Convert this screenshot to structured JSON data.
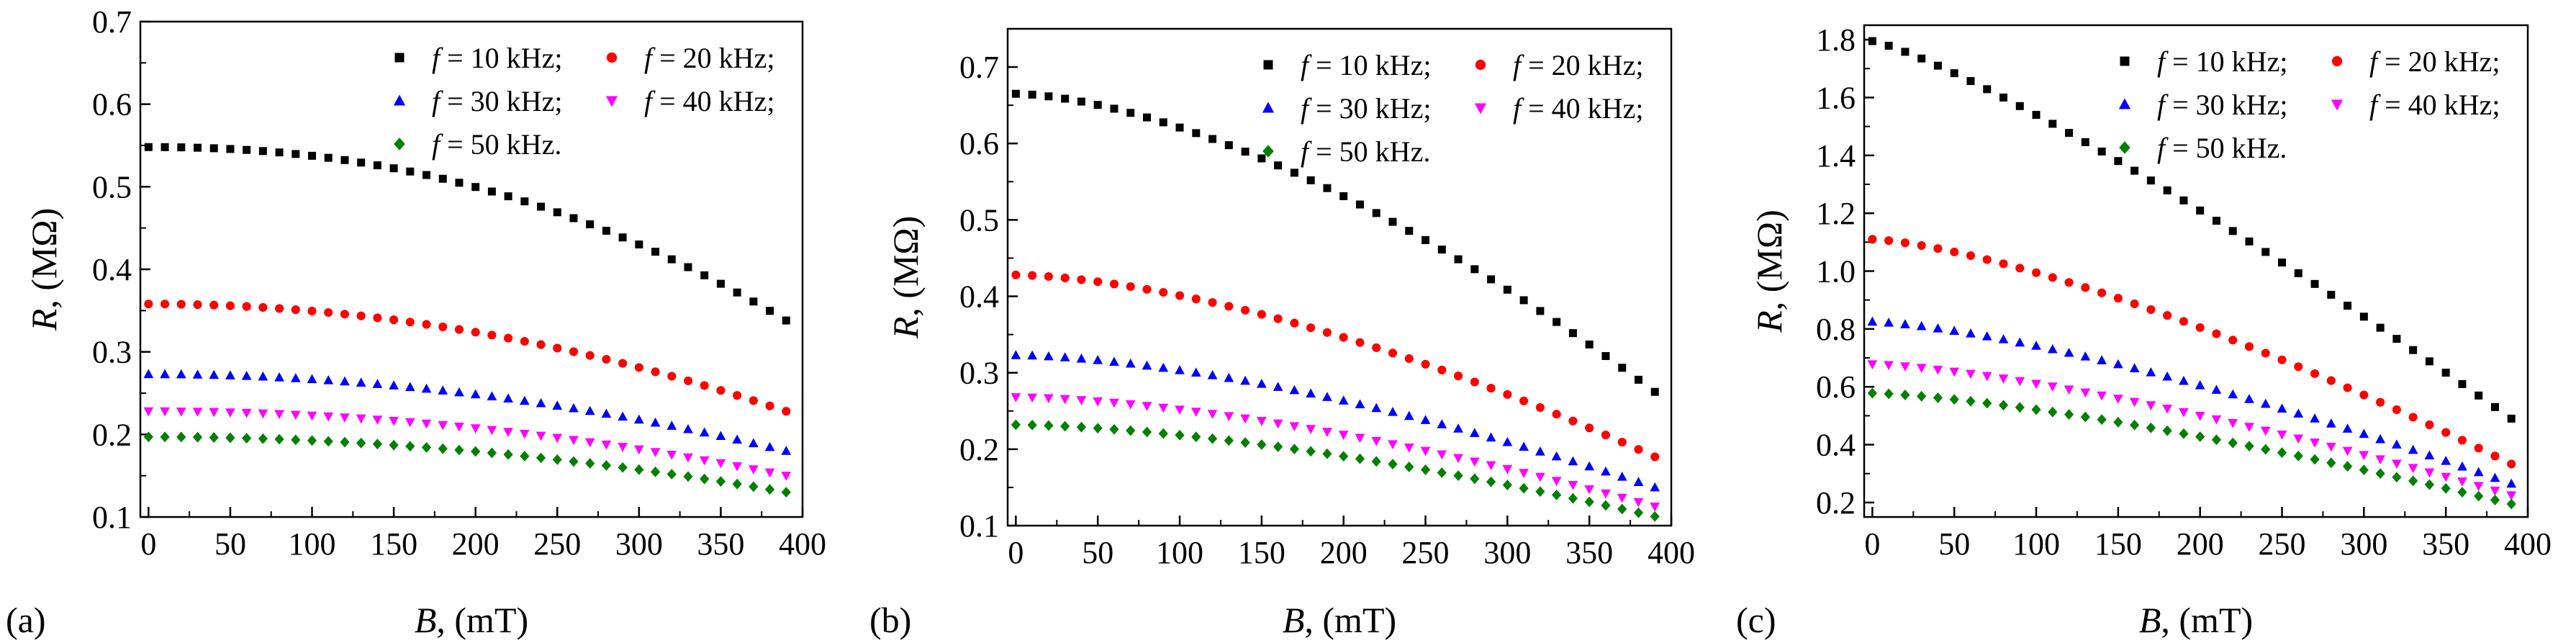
{
  "figure": {
    "colors": {
      "f10": "#000000",
      "f20": "#ff0000",
      "f30": "#0000ff",
      "f40": "#ff00ff",
      "f50": "#008000"
    }
  },
  "chart_data": [
    {
      "type": "scatter",
      "panel_label": "(a)",
      "xlabel": "B, (mT)",
      "ylabel": "R, (MΩ)",
      "xlim": [
        -5,
        400
      ],
      "ylim": [
        0.1,
        0.7
      ],
      "xticks": [
        0,
        50,
        100,
        150,
        200,
        250,
        300,
        350,
        400
      ],
      "yticks": [
        0.1,
        0.2,
        0.3,
        0.4,
        0.5,
        0.6,
        0.7
      ],
      "ytick_labels": [
        "0.1",
        "0.2",
        "0.3",
        "0.4",
        "0.5",
        "0.6",
        "0.7"
      ],
      "legend_position": "top-right",
      "series": [
        {
          "name": "f = 10 kHz;",
          "key": "f10",
          "marker": "square",
          "x_start": 0,
          "x_end": 390,
          "n": 40,
          "y_start": 0.548,
          "y_end": 0.338,
          "p": 2.2
        },
        {
          "name": "f = 20 kHz;",
          "key": "f20",
          "marker": "circle",
          "x_start": 0,
          "x_end": 390,
          "n": 40,
          "y_start": 0.358,
          "y_end": 0.228,
          "p": 2.0
        },
        {
          "name": "f = 30 kHz;",
          "key": "f30",
          "marker": "triangle-up",
          "x_start": 0,
          "x_end": 390,
          "n": 40,
          "y_start": 0.273,
          "y_end": 0.18,
          "p": 2.0
        },
        {
          "name": "f = 40 kHz;",
          "key": "f40",
          "marker": "triangle-down",
          "x_start": 0,
          "x_end": 390,
          "n": 40,
          "y_start": 0.228,
          "y_end": 0.15,
          "p": 2.0
        },
        {
          "name": "f = 50 kHz.",
          "key": "f50",
          "marker": "diamond",
          "x_start": 0,
          "x_end": 390,
          "n": 40,
          "y_start": 0.197,
          "y_end": 0.13,
          "p": 2.0
        }
      ]
    },
    {
      "type": "scatter",
      "panel_label": "(b)",
      "xlabel": "B, (mT)",
      "ylabel": "R, (MΩ)",
      "xlim": [
        -5,
        400
      ],
      "ylim": [
        0.1,
        0.75
      ],
      "xticks": [
        0,
        50,
        100,
        150,
        200,
        250,
        300,
        350,
        400
      ],
      "yticks": [
        0.1,
        0.2,
        0.3,
        0.4,
        0.5,
        0.6,
        0.7
      ],
      "ytick_labels": [
        "0.1",
        "0.2",
        "0.3",
        "0.4",
        "0.5",
        "0.6",
        "0.7"
      ],
      "legend_position": "top-right",
      "series": [
        {
          "name": "f = 10 kHz;",
          "key": "f10",
          "marker": "square",
          "x_start": 0,
          "x_end": 390,
          "n": 40,
          "y_start": 0.665,
          "y_end": 0.275,
          "p": 1.6
        },
        {
          "name": "f = 20 kHz;",
          "key": "f20",
          "marker": "circle",
          "x_start": 0,
          "x_end": 390,
          "n": 40,
          "y_start": 0.428,
          "y_end": 0.19,
          "p": 1.6
        },
        {
          "name": "f = 30 kHz;",
          "key": "f30",
          "marker": "triangle-up",
          "x_start": 0,
          "x_end": 390,
          "n": 40,
          "y_start": 0.323,
          "y_end": 0.15,
          "p": 1.6
        },
        {
          "name": "f = 40 kHz;",
          "key": "f40",
          "marker": "triangle-down",
          "x_start": 0,
          "x_end": 390,
          "n": 40,
          "y_start": 0.268,
          "y_end": 0.125,
          "p": 1.6
        },
        {
          "name": "f = 50 kHz.",
          "key": "f50",
          "marker": "diamond",
          "x_start": 0,
          "x_end": 390,
          "n": 40,
          "y_start": 0.232,
          "y_end": 0.112,
          "p": 1.6
        }
      ]
    },
    {
      "type": "scatter",
      "panel_label": "(c)",
      "xlabel": "B, (mT)",
      "ylabel": "R, (MΩ)",
      "xlim": [
        -5,
        400
      ],
      "ylim": [
        0.15,
        1.85
      ],
      "xticks": [
        0,
        50,
        100,
        150,
        200,
        250,
        300,
        350,
        400
      ],
      "yticks": [
        0.2,
        0.4,
        0.6,
        0.8,
        1.0,
        1.2,
        1.4,
        1.6,
        1.8
      ],
      "ytick_labels": [
        "0.2",
        "0.4",
        "0.6",
        "0.8",
        "1.0",
        "1.2",
        "1.4",
        "1.6",
        "1.8"
      ],
      "legend_position": "top-right",
      "series": [
        {
          "name": "f = 10 kHz;",
          "key": "f10",
          "marker": "square",
          "x_start": 0,
          "x_end": 390,
          "n": 40,
          "y_start": 1.795,
          "y_end": 0.49,
          "p": 1.2
        },
        {
          "name": "f = 20 kHz;",
          "key": "f20",
          "marker": "circle",
          "x_start": 0,
          "x_end": 390,
          "n": 40,
          "y_start": 1.11,
          "y_end": 0.333,
          "p": 1.4
        },
        {
          "name": "f = 30 kHz;",
          "key": "f30",
          "marker": "triangle-up",
          "x_start": 0,
          "x_end": 390,
          "n": 40,
          "y_start": 0.825,
          "y_end": 0.265,
          "p": 1.4
        },
        {
          "name": "f = 40 kHz;",
          "key": "f40",
          "marker": "triangle-down",
          "x_start": 0,
          "x_end": 390,
          "n": 40,
          "y_start": 0.678,
          "y_end": 0.225,
          "p": 1.4
        },
        {
          "name": "f = 50 kHz.",
          "key": "f50",
          "marker": "diamond",
          "x_start": 0,
          "x_end": 390,
          "n": 40,
          "y_start": 0.578,
          "y_end": 0.195,
          "p": 1.4
        }
      ]
    }
  ]
}
